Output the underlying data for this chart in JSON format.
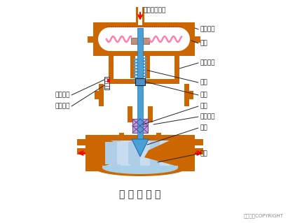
{
  "title": "气 动 薄 膜 阀",
  "copyright": "东方仿真COPYRIGHT",
  "bg_color": "#ffffff",
  "orange": "#CC6600",
  "blue": "#4A9FD4",
  "light_blue": "#A8D0E8",
  "pink": "#FF80B0",
  "red": "#FF0000",
  "dark": "#222222",
  "white": "#ffffff",
  "purple_fill": "#C0A0D8",
  "purple_edge": "#7040A0",
  "labels": {
    "pressure_inlet": "压力信号入口",
    "upper_chamber": "膜室上腔",
    "diaphragm": "膜片",
    "lower_chamber": "膜室下腔",
    "spring": "弹簧",
    "push_rod": "推杆",
    "valve_stem": "阀杆",
    "seal_packing": "密封填料",
    "valve_core": "阀芯",
    "valve_seat": "阀座",
    "stroke_indicator": "行程指针",
    "stroke_scale": "行程刻度"
  }
}
